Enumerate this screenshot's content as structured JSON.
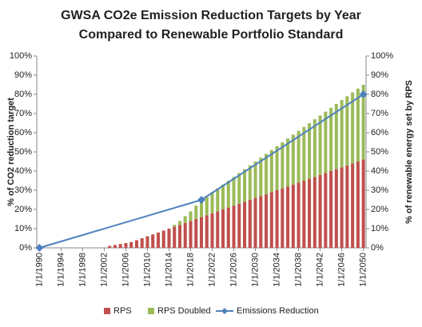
{
  "chart_data": {
    "type": "combo",
    "title": [
      "GWSA CO2e Emission Reduction Targets by Year",
      "Compared to Renewable Portfolio Standard"
    ],
    "y_label": "% of CO2 reduction target",
    "y2_label": "% of renewable energy set by RPS",
    "categories": [
      "1/1/1990",
      null,
      null,
      null,
      "1/1/1994",
      null,
      null,
      null,
      "1/1/1998",
      null,
      null,
      null,
      "1/1/2002",
      null,
      null,
      null,
      "1/1/2006",
      null,
      null,
      null,
      "1/1/2010",
      null,
      null,
      null,
      "1/1/2014",
      null,
      null,
      null,
      "1/1/2018",
      null,
      null,
      null,
      "1/1/2022",
      null,
      null,
      null,
      "1/1/2026",
      null,
      null,
      null,
      "1/1/2030",
      null,
      null,
      null,
      "1/1/2034",
      null,
      null,
      null,
      "1/1/2038",
      null,
      null,
      null,
      "1/1/2042",
      null,
      null,
      null,
      "1/1/2046",
      null,
      null,
      null,
      "1/1/2050"
    ],
    "series": [
      {
        "name": "RPS",
        "type": "stacked-bar",
        "axis": "y2",
        "color": "#c0504d",
        "values": [
          null,
          null,
          null,
          null,
          null,
          null,
          null,
          null,
          null,
          null,
          null,
          null,
          null,
          1,
          1.5,
          2,
          2.5,
          3,
          4,
          5,
          6,
          7,
          8,
          9,
          10,
          11,
          12,
          13,
          14,
          15,
          16,
          17,
          18,
          19,
          20,
          21,
          22,
          23,
          24,
          25,
          26,
          27,
          28,
          29,
          30,
          31,
          32,
          33,
          34,
          35,
          36,
          37,
          38,
          39,
          40,
          41,
          42,
          43,
          44,
          45,
          46
        ]
      },
      {
        "name": "RPS Doubled",
        "type": "stacked-bar",
        "axis": "y2",
        "color": "#9bbb59",
        "values": [
          null,
          null,
          null,
          null,
          null,
          null,
          null,
          null,
          null,
          null,
          null,
          null,
          null,
          null,
          null,
          null,
          null,
          null,
          null,
          null,
          null,
          null,
          null,
          null,
          null,
          1,
          2,
          3.5,
          5,
          7,
          9,
          10,
          11,
          12,
          13,
          14,
          15,
          16,
          17,
          18,
          19,
          20,
          21,
          22,
          23,
          24,
          25,
          26,
          27,
          28,
          29,
          30,
          31,
          32,
          33,
          34,
          35,
          36,
          37,
          38,
          39
        ]
      },
      {
        "name": "Emissions Reduction",
        "type": "line",
        "span_gaps": true,
        "color": "#4f81bd",
        "values": [
          0,
          null,
          null,
          null,
          null,
          null,
          null,
          null,
          null,
          null,
          null,
          null,
          null,
          null,
          null,
          null,
          null,
          null,
          null,
          null,
          null,
          null,
          null,
          null,
          null,
          null,
          null,
          null,
          null,
          null,
          25,
          null,
          null,
          null,
          null,
          null,
          null,
          null,
          null,
          null,
          null,
          null,
          null,
          null,
          null,
          null,
          null,
          null,
          null,
          null,
          null,
          null,
          null,
          null,
          null,
          null,
          null,
          null,
          null,
          null,
          80
        ]
      }
    ],
    "ylim": [
      0,
      100
    ],
    "yticks": [
      {
        "value": 0,
        "label": "0%"
      },
      {
        "value": 10,
        "label": "10%"
      },
      {
        "value": 20,
        "label": "20%"
      },
      {
        "value": 30,
        "label": "30%"
      },
      {
        "value": 40,
        "label": "40%"
      },
      {
        "value": 50,
        "label": "50%"
      },
      {
        "value": 60,
        "label": "60%"
      },
      {
        "value": 70,
        "label": "70%"
      },
      {
        "value": 80,
        "label": "80%"
      },
      {
        "value": 90,
        "label": "90%"
      },
      {
        "value": 100,
        "label": "100%"
      }
    ],
    "y2lim": [
      0,
      100
    ],
    "y2ticks": [
      {
        "value": 0,
        "label": "0%"
      },
      {
        "value": 10,
        "label": "10%"
      },
      {
        "value": 20,
        "label": "20%"
      },
      {
        "value": 30,
        "label": "30%"
      },
      {
        "value": 40,
        "label": "40%"
      },
      {
        "value": 50,
        "label": "50%"
      },
      {
        "value": 60,
        "label": "60%"
      },
      {
        "value": 70,
        "label": "70%"
      },
      {
        "value": 80,
        "label": "80%"
      },
      {
        "value": 90,
        "label": "90%"
      },
      {
        "value": 100,
        "label": "100%"
      }
    ],
    "legend": "bottom"
  }
}
